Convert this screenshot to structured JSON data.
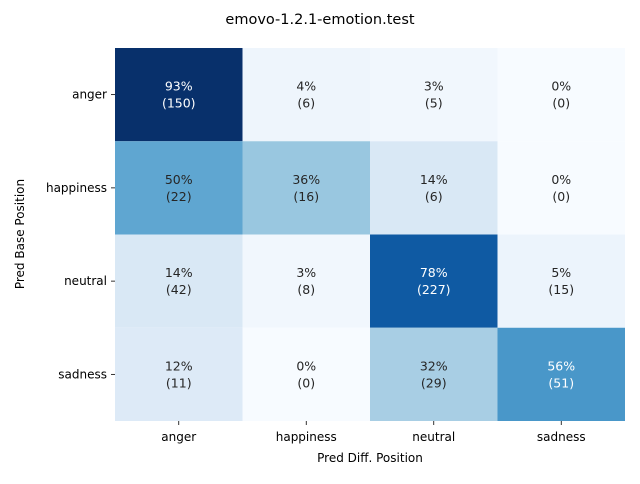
{
  "chart_data": {
    "type": "heatmap",
    "title": "emovo-1.2.1-emotion.test",
    "xlabel": "Pred Diff. Position",
    "ylabel": "Pred Base Position",
    "x_categories": [
      "anger",
      "happiness",
      "neutral",
      "sadness"
    ],
    "y_categories": [
      "anger",
      "happiness",
      "neutral",
      "sadness"
    ],
    "cells": [
      [
        {
          "pct": "93%",
          "count": "(150)",
          "value": 0.93
        },
        {
          "pct": "4%",
          "count": "(6)",
          "value": 0.04
        },
        {
          "pct": "3%",
          "count": "(5)",
          "value": 0.03
        },
        {
          "pct": "0%",
          "count": "(0)",
          "value": 0.0
        }
      ],
      [
        {
          "pct": "50%",
          "count": "(22)",
          "value": 0.5
        },
        {
          "pct": "36%",
          "count": "(16)",
          "value": 0.36
        },
        {
          "pct": "14%",
          "count": "(6)",
          "value": 0.14
        },
        {
          "pct": "0%",
          "count": "(0)",
          "value": 0.0
        }
      ],
      [
        {
          "pct": "14%",
          "count": "(42)",
          "value": 0.14
        },
        {
          "pct": "3%",
          "count": "(8)",
          "value": 0.03
        },
        {
          "pct": "78%",
          "count": "(227)",
          "value": 0.78
        },
        {
          "pct": "5%",
          "count": "(15)",
          "value": 0.05
        }
      ],
      [
        {
          "pct": "12%",
          "count": "(11)",
          "value": 0.12
        },
        {
          "pct": "0%",
          "count": "(0)",
          "value": 0.0
        },
        {
          "pct": "32%",
          "count": "(29)",
          "value": 0.32
        },
        {
          "pct": "56%",
          "count": "(51)",
          "value": 0.56
        }
      ]
    ],
    "colormap": "Blues",
    "vmin": 0,
    "vmax": 0.93,
    "colorbar": false,
    "grid": false
  }
}
